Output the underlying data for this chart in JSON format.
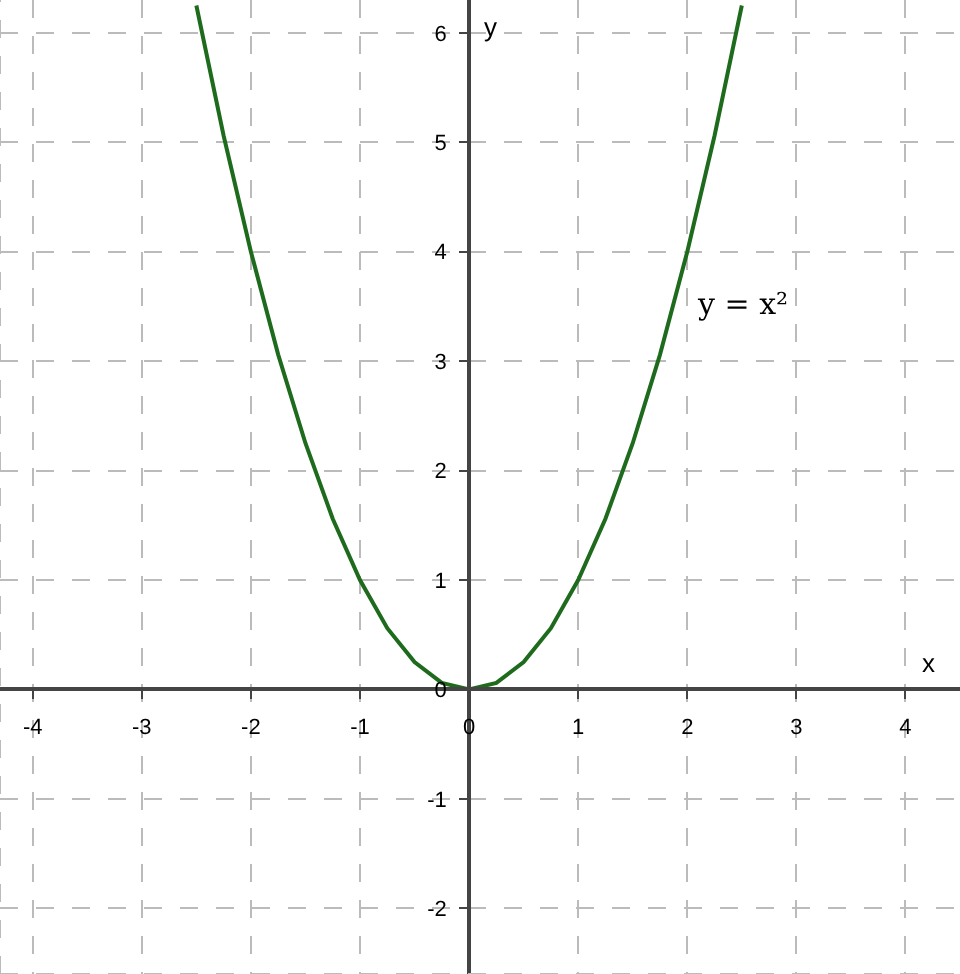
{
  "chart_data": {
    "type": "line",
    "xlabel": "x",
    "ylabel": "y",
    "x": [
      -2.5,
      -2.25,
      -2,
      -1.75,
      -1.5,
      -1.25,
      -1,
      -0.75,
      -0.5,
      -0.25,
      0,
      0.25,
      0.5,
      0.75,
      1,
      1.25,
      1.5,
      1.75,
      2,
      2.25,
      2.5
    ],
    "series": [
      {
        "color": "#1e6b1e",
        "values": [
          6.25,
          5.06,
          4,
          3.06,
          2.25,
          1.56,
          1,
          0.56,
          0.25,
          0.06,
          0,
          0.06,
          0.25,
          0.56,
          1,
          1.56,
          2.25,
          3.06,
          4,
          5.06,
          6.25
        ]
      }
    ],
    "xlim": [
      -4.3,
      4.5
    ],
    "ylim": [
      -2.6,
      6.3
    ],
    "xticks": [
      -4,
      -3,
      -2,
      -1,
      0,
      1,
      2,
      3,
      4
    ],
    "yticks": [
      -2,
      -1,
      0,
      1,
      2,
      3,
      4,
      5,
      6
    ],
    "grid": true,
    "line_style": "solid",
    "marker": "none",
    "annotations": [
      "y = x²"
    ]
  }
}
